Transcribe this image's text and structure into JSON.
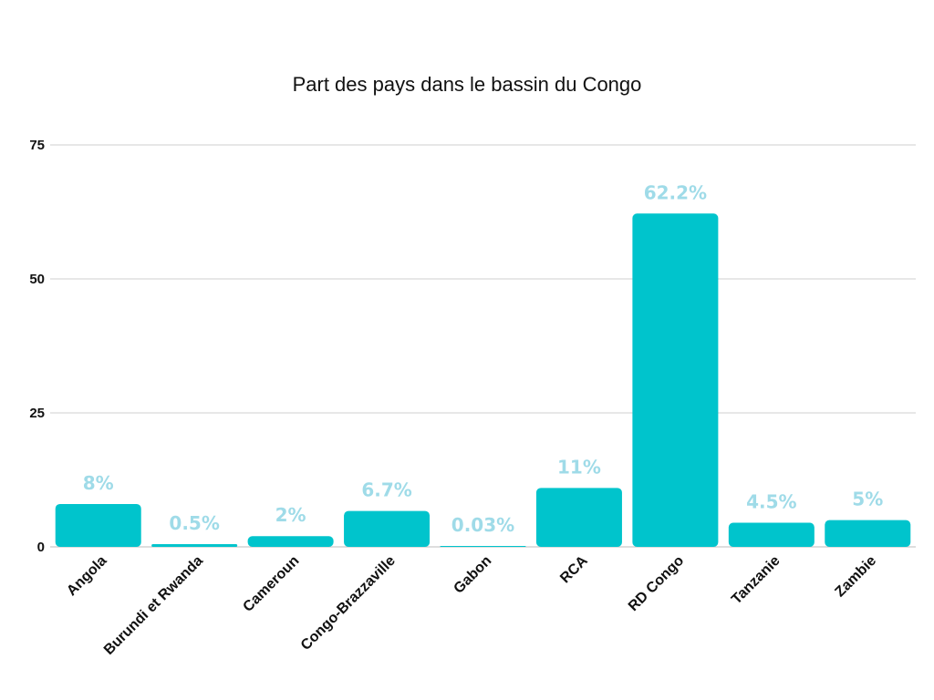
{
  "chart_data": {
    "type": "bar",
    "title": "Part des pays dans le bassin du Congo",
    "categories": [
      "Angola",
      "Burundi et Rwanda",
      "Cameroun",
      "Congo-Brazzaville",
      "Gabon",
      "RCA",
      "RD Congo",
      "Tanzanie",
      "Zambie"
    ],
    "values": [
      8,
      0.5,
      2,
      6.7,
      0.03,
      11,
      62.2,
      4.5,
      5
    ],
    "data_labels": [
      "8%",
      "0.5%",
      "2%",
      "6.7%",
      "0.03%",
      "11%",
      "62.2%",
      "4.5%",
      "5%"
    ],
    "ylim": [
      0,
      75
    ],
    "yticks": [
      0,
      25,
      50,
      75
    ],
    "ytick_labels": [
      "0",
      "25",
      "50",
      "75"
    ],
    "grid": true,
    "legend": "none",
    "colors": {
      "bar": "#00c4cc",
      "data_label": "#9fdbe8",
      "grid": "#cfcfcf"
    }
  }
}
